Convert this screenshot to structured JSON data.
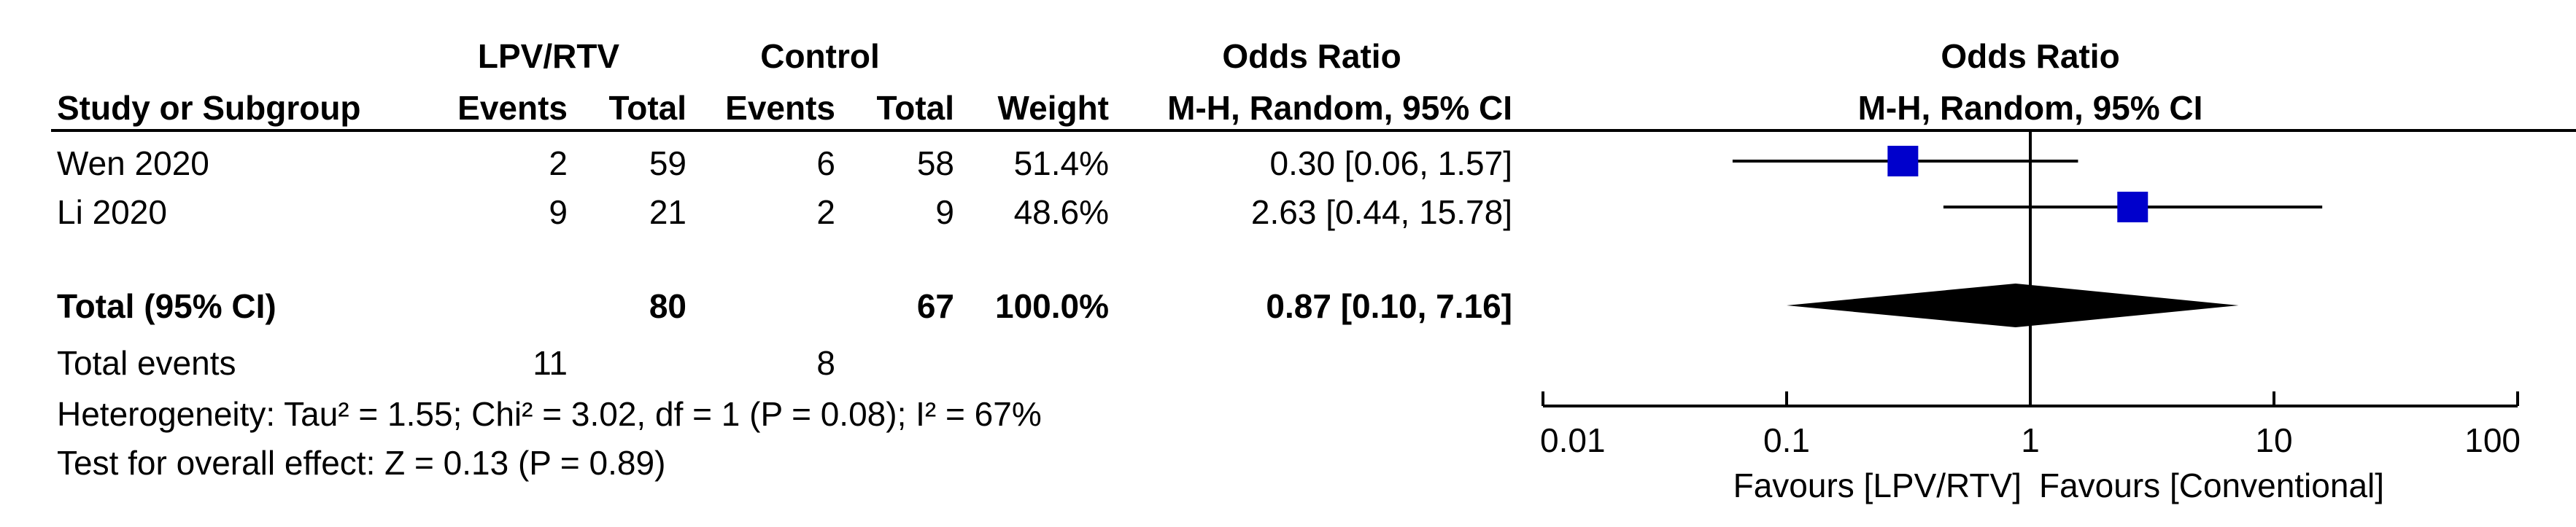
{
  "table": {
    "group1": "LPV/RTV",
    "group2": "Control",
    "or_header_left": "Odds Ratio",
    "or_header_right": "Odds Ratio",
    "method_left": "M-H, Random, 95% CI",
    "method_right": "M-H, Random, 95% CI",
    "col_study": "Study or Subgroup",
    "col_events1": "Events",
    "col_total1": "Total",
    "col_events2": "Events",
    "col_total2": "Total",
    "col_weight": "Weight",
    "rows": [
      {
        "study": "Wen 2020",
        "events1": "2",
        "total1": "59",
        "events2": "6",
        "total2": "58",
        "weight": "51.4%",
        "ci": "0.30 [0.06, 1.57]"
      },
      {
        "study": "Li 2020",
        "events1": "9",
        "total1": "21",
        "events2": "2",
        "total2": "9",
        "weight": "48.6%",
        "ci": "2.63 [0.44, 15.78]"
      }
    ],
    "total": {
      "label": "Total (95% CI)",
      "total1": "80",
      "total2": "67",
      "weight": "100.0%",
      "ci": "0.87 [0.10, 7.16]"
    },
    "events": {
      "label": "Total events",
      "events1": "11",
      "events2": "8"
    },
    "heterogeneity": "Heterogeneity: Tau² = 1.55; Chi² = 3.02, df = 1 (P = 0.08); I² = 67%",
    "overall_effect": "Test for overall effect: Z = 0.13 (P = 0.89)"
  },
  "chart_data": {
    "type": "forest",
    "title": "Odds Ratio",
    "method": "M-H, Random, 95% CI",
    "x_scale": "log",
    "xlim": [
      0.01,
      100
    ],
    "null_line": 1,
    "ticks": [
      0.01,
      0.1,
      1,
      10,
      100
    ],
    "tick_labels": [
      "0.01",
      "0.1",
      "1",
      "10",
      "100"
    ],
    "favours_left": "Favours [LPV/RTV]",
    "favours_right": "Favours [Conventional]",
    "studies": [
      {
        "name": "Wen 2020",
        "or": 0.3,
        "lower": 0.06,
        "upper": 1.57,
        "weight": 51.4
      },
      {
        "name": "Li 2020",
        "or": 2.63,
        "lower": 0.44,
        "upper": 15.78,
        "weight": 48.6
      }
    ],
    "pooled": {
      "or": 0.87,
      "lower": 0.1,
      "upper": 7.16
    },
    "marker_color": "#0000cc",
    "diamond_color": "#000000"
  }
}
